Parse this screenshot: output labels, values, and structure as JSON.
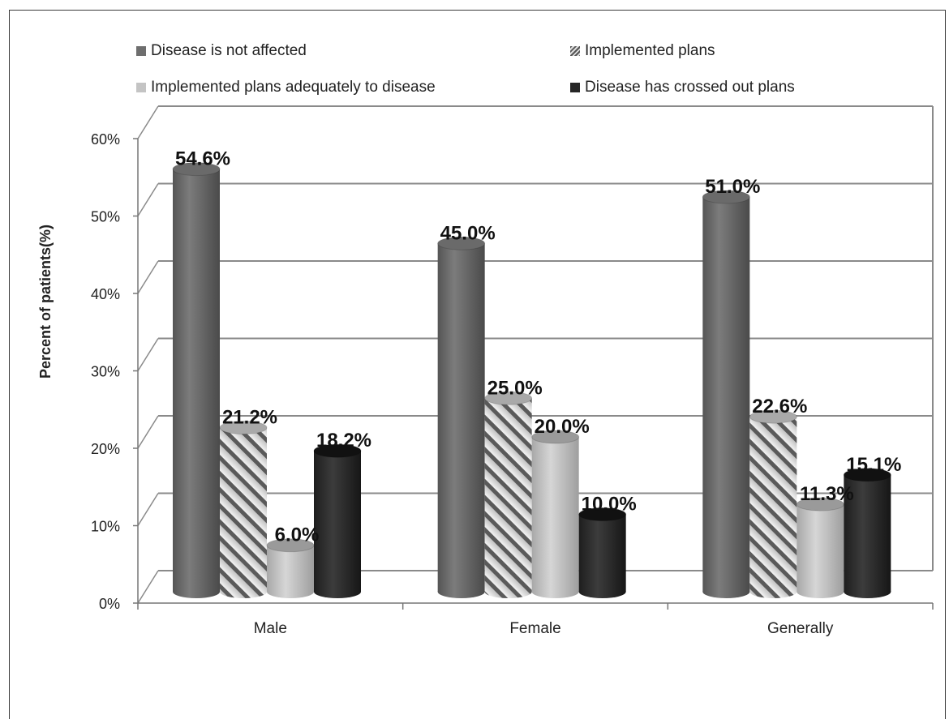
{
  "chart_data": {
    "type": "bar",
    "categories": [
      "Male",
      "Female",
      "Generally"
    ],
    "series": [
      {
        "name": "Disease is not affected",
        "values": [
          54.6,
          45.0,
          51.0
        ],
        "labels": [
          "54.6%",
          "45.0%",
          "51.0%"
        ],
        "color": "#6e6e6e",
        "pattern": "solid"
      },
      {
        "name": "Implemented plans",
        "values": [
          21.2,
          25.0,
          22.6
        ],
        "labels": [
          "21.2%",
          "25.0%",
          "22.6%"
        ],
        "color": "#d8d8d8",
        "pattern": "hatched"
      },
      {
        "name": "Implemented plans adequately to disease",
        "values": [
          6.0,
          20.0,
          11.3
        ],
        "labels": [
          "6.0%",
          "20.0%",
          "11.3%"
        ],
        "color": "#bdbdbd",
        "pattern": "solid"
      },
      {
        "name": "Disease has crossed out plans",
        "values": [
          18.2,
          10.0,
          15.1
        ],
        "labels": [
          "18.2%",
          "10.0%",
          "15.1%"
        ],
        "color": "#2b2b2b",
        "pattern": "solid"
      }
    ],
    "ylabel": "Percent  of patients(%)",
    "xlabel": "",
    "ylim": [
      0,
      60
    ],
    "yticks": [
      "0%",
      "10%",
      "20%",
      "30%",
      "40%",
      "50%",
      "60%"
    ],
    "grid": true,
    "legend_position": "top"
  }
}
